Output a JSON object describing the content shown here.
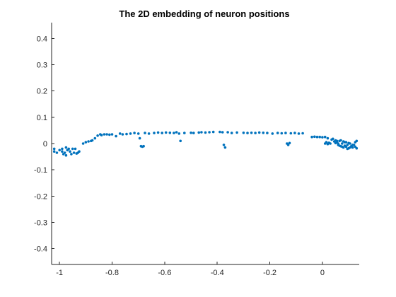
{
  "chart_data": {
    "type": "scatter",
    "title": "The 2D embedding of neuron positions",
    "xlabel": "",
    "ylabel": "",
    "xlim": [
      -1.03,
      0.14
    ],
    "ylim": [
      -0.46,
      0.46
    ],
    "xticks": [
      -1,
      -0.8,
      -0.6,
      -0.4,
      -0.2,
      0
    ],
    "xtick_labels": [
      "-1",
      "-0.8",
      "-0.6",
      "-0.4",
      "-0.2",
      "0"
    ],
    "yticks": [
      0.4,
      0.3,
      0.2,
      0.1,
      0,
      -0.1,
      -0.2,
      -0.3,
      -0.4
    ],
    "ytick_labels": [
      "0.4",
      "0.3",
      "0.2",
      "0.1",
      "0",
      "-0.1",
      "-0.2",
      "-0.3",
      "-0.4"
    ],
    "grid": false,
    "marker_color": "#0072BD",
    "series": [
      {
        "points": [
          [
            -1.02,
            -0.02
          ],
          [
            -1.02,
            -0.03
          ],
          [
            -1.01,
            -0.035
          ],
          [
            -1.0,
            -0.025
          ],
          [
            -0.99,
            -0.03
          ],
          [
            -0.99,
            -0.02
          ],
          [
            -0.985,
            -0.04
          ],
          [
            -0.98,
            -0.035
          ],
          [
            -0.975,
            -0.015
          ],
          [
            -0.975,
            -0.045
          ],
          [
            -0.97,
            -0.025
          ],
          [
            -0.965,
            -0.02
          ],
          [
            -0.96,
            -0.03
          ],
          [
            -0.955,
            -0.04
          ],
          [
            -0.95,
            -0.02
          ],
          [
            -0.945,
            -0.035
          ],
          [
            -0.94,
            -0.02
          ],
          [
            -0.935,
            -0.038
          ],
          [
            -0.93,
            -0.035
          ],
          [
            -0.925,
            -0.03
          ],
          [
            -0.91,
            0.0
          ],
          [
            -0.9,
            0.005
          ],
          [
            -0.89,
            0.008
          ],
          [
            -0.88,
            0.01
          ],
          [
            -0.875,
            0.012
          ],
          [
            -0.865,
            0.02
          ],
          [
            -0.855,
            0.03
          ],
          [
            -0.845,
            0.035
          ],
          [
            -0.84,
            0.032
          ],
          [
            -0.83,
            0.035
          ],
          [
            -0.82,
            0.035
          ],
          [
            -0.81,
            0.034
          ],
          [
            -0.8,
            0.035
          ],
          [
            -0.785,
            0.028
          ],
          [
            -0.77,
            0.038
          ],
          [
            -0.76,
            0.035
          ],
          [
            -0.745,
            0.036
          ],
          [
            -0.73,
            0.038
          ],
          [
            -0.715,
            0.04
          ],
          [
            -0.7,
            0.038
          ],
          [
            -0.695,
            0.02
          ],
          [
            -0.69,
            -0.01
          ],
          [
            -0.685,
            -0.012
          ],
          [
            -0.68,
            -0.01
          ],
          [
            -0.675,
            0.04
          ],
          [
            -0.66,
            0.038
          ],
          [
            -0.64,
            0.04
          ],
          [
            -0.625,
            0.042
          ],
          [
            -0.61,
            0.04
          ],
          [
            -0.595,
            0.042
          ],
          [
            -0.58,
            0.041
          ],
          [
            -0.565,
            0.04
          ],
          [
            -0.555,
            0.043
          ],
          [
            -0.545,
            0.038
          ],
          [
            -0.54,
            0.01
          ],
          [
            -0.525,
            0.04
          ],
          [
            -0.5,
            0.041
          ],
          [
            -0.49,
            0.04
          ],
          [
            -0.47,
            0.042
          ],
          [
            -0.46,
            0.043
          ],
          [
            -0.445,
            0.042
          ],
          [
            -0.43,
            0.043
          ],
          [
            -0.415,
            0.044
          ],
          [
            -0.39,
            0.044
          ],
          [
            -0.38,
            0.043
          ],
          [
            -0.375,
            -0.005
          ],
          [
            -0.37,
            -0.015
          ],
          [
            -0.36,
            0.043
          ],
          [
            -0.345,
            0.04
          ],
          [
            -0.325,
            0.042
          ],
          [
            -0.3,
            0.041
          ],
          [
            -0.285,
            0.04
          ],
          [
            -0.27,
            0.041
          ],
          [
            -0.255,
            0.04
          ],
          [
            -0.24,
            0.042
          ],
          [
            -0.225,
            0.041
          ],
          [
            -0.21,
            0.04
          ],
          [
            -0.19,
            0.038
          ],
          [
            -0.17,
            0.04
          ],
          [
            -0.155,
            0.039
          ],
          [
            -0.14,
            0.04
          ],
          [
            -0.135,
            0.0
          ],
          [
            -0.13,
            -0.005
          ],
          [
            -0.125,
            0.002
          ],
          [
            -0.12,
            0.039
          ],
          [
            -0.105,
            0.04
          ],
          [
            -0.09,
            0.038
          ],
          [
            -0.075,
            0.039
          ],
          [
            -0.04,
            0.025
          ],
          [
            -0.03,
            0.026
          ],
          [
            -0.02,
            0.025
          ],
          [
            -0.01,
            0.025
          ],
          [
            0.0,
            0.024
          ],
          [
            0.01,
            0.025
          ],
          [
            0.02,
            0.02
          ],
          [
            0.01,
            0.0
          ],
          [
            0.015,
            0.005
          ],
          [
            0.02,
            -0.002
          ],
          [
            0.025,
            0.003
          ],
          [
            0.03,
            0.0
          ],
          [
            0.035,
            0.015
          ],
          [
            0.04,
            0.018
          ],
          [
            0.045,
            0.008
          ],
          [
            0.05,
            0.012
          ],
          [
            0.055,
            0.005
          ],
          [
            0.06,
            -0.005
          ],
          [
            0.065,
            0.01
          ],
          [
            0.07,
            -0.01
          ],
          [
            0.075,
            0.0
          ],
          [
            0.08,
            -0.015
          ],
          [
            0.085,
            0.005
          ],
          [
            0.09,
            -0.012
          ],
          [
            0.095,
            -0.005
          ],
          [
            0.1,
            -0.018
          ],
          [
            0.105,
            0.0
          ],
          [
            0.11,
            -0.01
          ],
          [
            0.115,
            -0.015
          ],
          [
            0.12,
            -0.005
          ],
          [
            0.125,
            -0.012
          ],
          [
            0.13,
            0.01
          ],
          [
            0.13,
            -0.018
          ],
          [
            0.07,
            0.012
          ],
          [
            0.08,
            0.008
          ],
          [
            0.09,
            0.005
          ],
          [
            0.1,
            0.002
          ],
          [
            0.06,
            0.0
          ],
          [
            0.065,
            -0.008
          ],
          [
            0.075,
            -0.012
          ],
          [
            0.085,
            -0.008
          ],
          [
            0.095,
            -0.02
          ],
          [
            0.105,
            -0.015
          ],
          [
            0.115,
            -0.005
          ],
          [
            0.055,
            0.01
          ],
          [
            0.05,
            0.002
          ],
          [
            0.125,
            0.005
          ]
        ]
      }
    ]
  }
}
